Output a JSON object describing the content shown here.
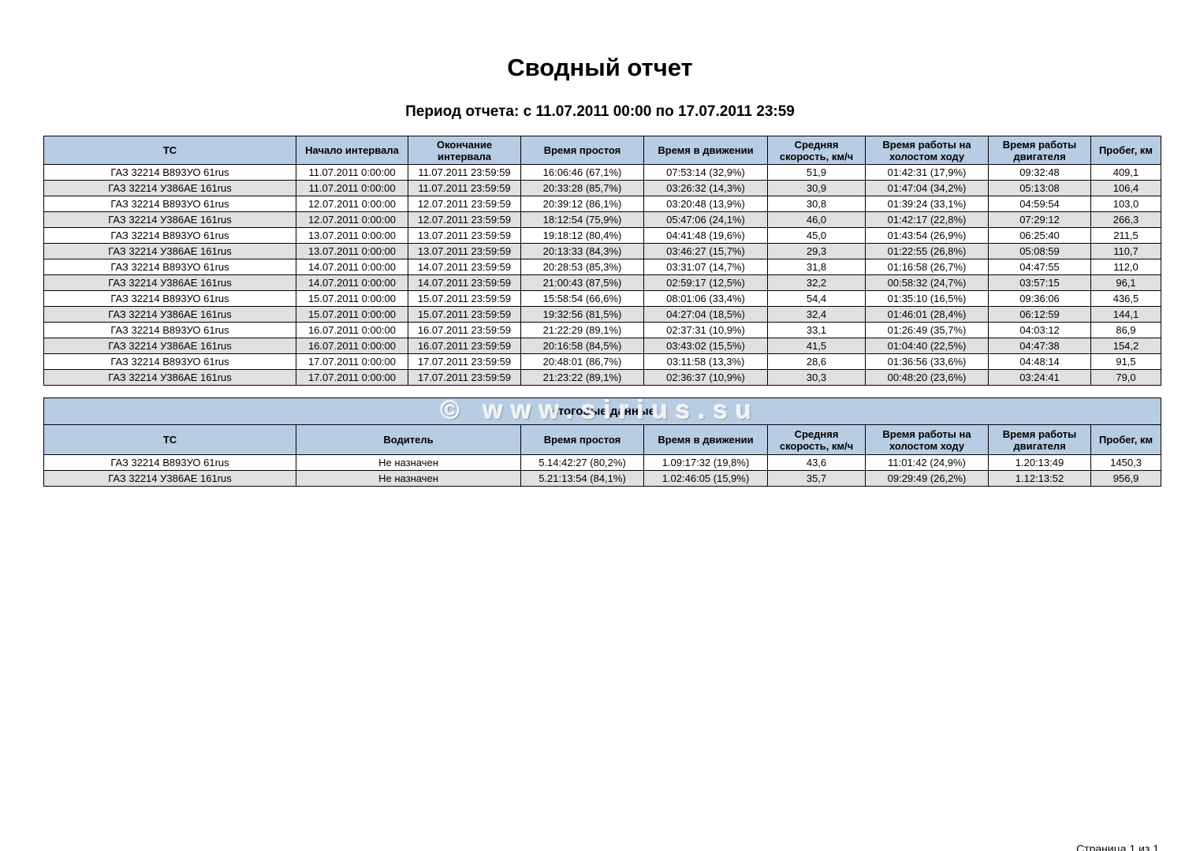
{
  "page": {
    "title": "Сводный отчет",
    "period": "Период отчета: с 11.07.2011 00:00 по 17.07.2011 23:59",
    "watermark": "© www.sirius.su",
    "page_label": "Страница 1 из 1"
  },
  "colors": {
    "header_bg": "#b8cce4",
    "alt_row_bg": "#e0e0e0",
    "border": "#000000"
  },
  "interval_table": {
    "headers": [
      "ТС",
      "Начало интервала",
      "Окончание интервала",
      "Время простоя",
      "Время в движении",
      "Средняя скорость, км/ч",
      "Время работы на холостом ходу",
      "Время работы двигателя",
      "Пробег, км"
    ],
    "rows": [
      [
        "ГАЗ 32214 В893УО 61rus",
        "11.07.2011 0:00:00",
        "11.07.2011 23:59:59",
        "16:06:46 (67,1%)",
        "07:53:14 (32,9%)",
        "51,9",
        "01:42:31 (17,9%)",
        "09:32:48",
        "409,1"
      ],
      [
        "ГАЗ 32214 У386АЕ 161rus",
        "11.07.2011 0:00:00",
        "11.07.2011 23:59:59",
        "20:33:28 (85,7%)",
        "03:26:32 (14,3%)",
        "30,9",
        "01:47:04 (34,2%)",
        "05:13:08",
        "106,4"
      ],
      [
        "ГАЗ 32214 В893УО 61rus",
        "12.07.2011 0:00:00",
        "12.07.2011 23:59:59",
        "20:39:12 (86,1%)",
        "03:20:48 (13,9%)",
        "30,8",
        "01:39:24 (33,1%)",
        "04:59:54",
        "103,0"
      ],
      [
        "ГАЗ 32214 У386АЕ 161rus",
        "12.07.2011 0:00:00",
        "12.07.2011 23:59:59",
        "18:12:54 (75,9%)",
        "05:47:06 (24,1%)",
        "46,0",
        "01:42:17 (22,8%)",
        "07:29:12",
        "266,3"
      ],
      [
        "ГАЗ 32214 В893УО 61rus",
        "13.07.2011 0:00:00",
        "13.07.2011 23:59:59",
        "19:18:12 (80,4%)",
        "04:41:48 (19,6%)",
        "45,0",
        "01:43:54 (26,9%)",
        "06:25:40",
        "211,5"
      ],
      [
        "ГАЗ 32214 У386АЕ 161rus",
        "13.07.2011 0:00:00",
        "13.07.2011 23:59:59",
        "20:13:33 (84,3%)",
        "03:46:27 (15,7%)",
        "29,3",
        "01:22:55 (26,8%)",
        "05:08:59",
        "110,7"
      ],
      [
        "ГАЗ 32214 В893УО 61rus",
        "14.07.2011 0:00:00",
        "14.07.2011 23:59:59",
        "20:28:53 (85,3%)",
        "03:31:07 (14,7%)",
        "31,8",
        "01:16:58 (26,7%)",
        "04:47:55",
        "112,0"
      ],
      [
        "ГАЗ 32214 У386АЕ 161rus",
        "14.07.2011 0:00:00",
        "14.07.2011 23:59:59",
        "21:00:43 (87,5%)",
        "02:59:17 (12,5%)",
        "32,2",
        "00:58:32 (24,7%)",
        "03:57:15",
        "96,1"
      ],
      [
        "ГАЗ 32214 В893УО 61rus",
        "15.07.2011 0:00:00",
        "15.07.2011 23:59:59",
        "15:58:54 (66,6%)",
        "08:01:06 (33,4%)",
        "54,4",
        "01:35:10 (16,5%)",
        "09:36:06",
        "436,5"
      ],
      [
        "ГАЗ 32214 У386АЕ 161rus",
        "15.07.2011 0:00:00",
        "15.07.2011 23:59:59",
        "19:32:56 (81,5%)",
        "04:27:04 (18,5%)",
        "32,4",
        "01:46:01 (28,4%)",
        "06:12:59",
        "144,1"
      ],
      [
        "ГАЗ 32214 В893УО 61rus",
        "16.07.2011 0:00:00",
        "16.07.2011 23:59:59",
        "21:22:29 (89,1%)",
        "02:37:31 (10,9%)",
        "33,1",
        "01:26:49 (35,7%)",
        "04:03:12",
        "86,9"
      ],
      [
        "ГАЗ 32214 У386АЕ 161rus",
        "16.07.2011 0:00:00",
        "16.07.2011 23:59:59",
        "20:16:58 (84,5%)",
        "03:43:02 (15,5%)",
        "41,5",
        "01:04:40 (22,5%)",
        "04:47:38",
        "154,2"
      ],
      [
        "ГАЗ 32214 В893УО 61rus",
        "17.07.2011 0:00:00",
        "17.07.2011 23:59:59",
        "20:48:01 (86,7%)",
        "03:11:58 (13,3%)",
        "28,6",
        "01:36:56 (33,6%)",
        "04:48:14",
        "91,5"
      ],
      [
        "ГАЗ 32214 У386АЕ 161rus",
        "17.07.2011 0:00:00",
        "17.07.2011 23:59:59",
        "21:23:22 (89,1%)",
        "02:36:37 (10,9%)",
        "30,3",
        "00:48:20 (23,6%)",
        "03:24:41",
        "79,0"
      ]
    ]
  },
  "totals_table": {
    "title": "Итоговые данные",
    "headers": [
      "ТС",
      "Водитель",
      "Время простоя",
      "Время в движении",
      "Средняя скорость, км/ч",
      "Время работы на холостом ходу",
      "Время работы двигателя",
      "Пробег, км"
    ],
    "rows": [
      [
        "ГАЗ 32214 В893УО 61rus",
        "Не назначен",
        "5.14:42:27 (80,2%)",
        "1.09:17:32 (19,8%)",
        "43,6",
        "11:01:42 (24,9%)",
        "1.20:13:49",
        "1450,3"
      ],
      [
        "ГАЗ 32214 У386АЕ 161rus",
        "Не назначен",
        "5.21:13:54 (84,1%)",
        "1.02:46:05 (15,9%)",
        "35,7",
        "09:29:49 (26,2%)",
        "1.12:13:52",
        "956,9"
      ]
    ]
  }
}
